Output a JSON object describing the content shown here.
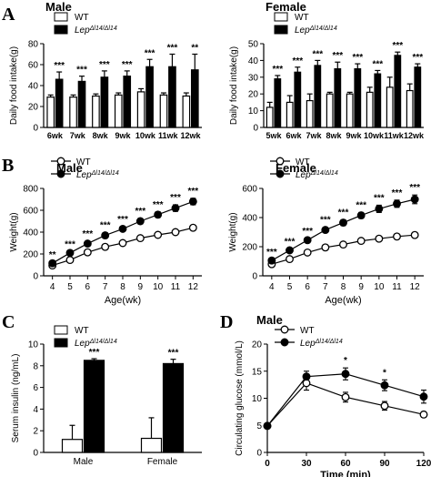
{
  "panels": {
    "A": "A",
    "B": "B",
    "C": "C",
    "D": "D"
  },
  "chart_data": [
    {
      "id": "A-male",
      "type": "bar",
      "title": "Male",
      "ylabel": "Daily food intake(g)",
      "xlabel": "",
      "ylim": [
        0,
        80
      ],
      "yticks": [
        0,
        20,
        40,
        60,
        80
      ],
      "categories": [
        "6wk",
        "7wk",
        "8wk",
        "9wk",
        "10wk",
        "11wk",
        "12wk"
      ],
      "legend": {
        "placement": "top-left",
        "entries": [
          {
            "label": "WT",
            "fill": "#ffffff"
          },
          {
            "label": "Lep",
            "sup": "Δl14/Δl14",
            "fill": "#000000"
          }
        ]
      },
      "series": [
        {
          "name": "WT",
          "fill": "#ffffff",
          "values": [
            29,
            29,
            30,
            31,
            34,
            31,
            30
          ],
          "errors": [
            2,
            2,
            2,
            2,
            3,
            2,
            3
          ]
        },
        {
          "name": "Lep Δl14/Δl14",
          "fill": "#000000",
          "values": [
            46,
            44,
            48,
            49,
            58,
            58,
            55
          ],
          "errors": [
            7,
            5,
            6,
            5,
            7,
            12,
            15
          ]
        }
      ],
      "significance": [
        "***",
        "***",
        "***",
        "***",
        "***",
        "***",
        "**"
      ]
    },
    {
      "id": "A-female",
      "type": "bar",
      "title": "Female",
      "ylabel": "Daily food intake(g)",
      "xlabel": "",
      "ylim": [
        0,
        50
      ],
      "yticks": [
        0,
        10,
        20,
        30,
        40,
        50
      ],
      "categories": [
        "5wk",
        "6wk",
        "7wk",
        "8wk",
        "9wk",
        "10wk",
        "11wk",
        "12wk"
      ],
      "legend": {
        "placement": "top-left",
        "entries": [
          {
            "label": "WT",
            "fill": "#ffffff"
          },
          {
            "label": "Lep",
            "sup": "Δl14/Δl14",
            "fill": "#000000"
          }
        ]
      },
      "series": [
        {
          "name": "WT",
          "fill": "#ffffff",
          "values": [
            12,
            15,
            16,
            20,
            20,
            21,
            24,
            22
          ],
          "errors": [
            3,
            4,
            4,
            1,
            1,
            3,
            6,
            4
          ]
        },
        {
          "name": "Lep Δl14/Δl14",
          "fill": "#000000",
          "values": [
            29,
            33,
            37,
            35,
            35,
            32,
            43,
            36
          ],
          "errors": [
            2,
            3,
            3,
            4,
            3,
            2,
            2,
            2
          ]
        }
      ],
      "significance": [
        "***",
        "***",
        "***",
        "***",
        "***",
        "***",
        "***",
        "***"
      ]
    },
    {
      "id": "B-male",
      "type": "line",
      "title": "Male",
      "ylabel": "Weight(g)",
      "xlabel": "Age(wk)",
      "xlim": [
        3.5,
        12.5
      ],
      "ylim": [
        0,
        800
      ],
      "yticks": [
        0,
        200,
        400,
        600,
        800
      ],
      "xticks": [
        4,
        5,
        6,
        7,
        8,
        9,
        10,
        11,
        12
      ],
      "legend": {
        "placement": "top-left",
        "entries": [
          {
            "label": "WT",
            "marker": "open"
          },
          {
            "label": "Lep",
            "sup": "Δl14/Δl14",
            "marker": "filled"
          }
        ]
      },
      "series": [
        {
          "name": "WT",
          "marker": "open",
          "x": [
            4,
            5,
            6,
            7,
            8,
            9,
            10,
            11,
            12
          ],
          "values": [
            95,
            145,
            215,
            265,
            300,
            345,
            375,
            400,
            440
          ],
          "errors": [
            8,
            8,
            8,
            8,
            8,
            8,
            8,
            8,
            10
          ]
        },
        {
          "name": "Lep Δl14/Δl14",
          "marker": "filled",
          "x": [
            4,
            5,
            6,
            7,
            8,
            9,
            10,
            11,
            12
          ],
          "values": [
            115,
            210,
            295,
            370,
            430,
            500,
            560,
            620,
            680
          ],
          "errors": [
            10,
            12,
            20,
            25,
            20,
            25,
            25,
            30,
            30
          ]
        }
      ],
      "significance": [
        "**",
        "***",
        "***",
        "***",
        "***",
        "***",
        "***",
        "***",
        "***"
      ]
    },
    {
      "id": "B-female",
      "type": "line",
      "title": "Female",
      "ylabel": "Weight(g)",
      "xlabel": "Age(wk)",
      "xlim": [
        3.5,
        12.5
      ],
      "ylim": [
        0,
        600
      ],
      "yticks": [
        0,
        200,
        400,
        600
      ],
      "xticks": [
        4,
        5,
        6,
        7,
        8,
        9,
        10,
        11,
        12
      ],
      "legend": {
        "placement": "top-left",
        "entries": [
          {
            "label": "WT",
            "marker": "open"
          },
          {
            "label": "Lep",
            "sup": "Δl14/Δl14",
            "marker": "filled"
          }
        ]
      },
      "series": [
        {
          "name": "WT",
          "marker": "open",
          "x": [
            4,
            5,
            6,
            7,
            8,
            9,
            10,
            11,
            12
          ],
          "values": [
            80,
            115,
            160,
            195,
            215,
            240,
            255,
            270,
            280
          ],
          "errors": [
            6,
            6,
            6,
            6,
            6,
            6,
            6,
            6,
            8
          ]
        },
        {
          "name": "Lep Δl14/Δl14",
          "marker": "filled",
          "x": [
            4,
            5,
            6,
            7,
            8,
            9,
            10,
            11,
            12
          ],
          "values": [
            105,
            175,
            245,
            315,
            365,
            415,
            460,
            495,
            525
          ],
          "errors": [
            8,
            10,
            12,
            18,
            20,
            20,
            25,
            25,
            30
          ]
        }
      ],
      "significance": [
        "***",
        "***",
        "***",
        "***",
        "***",
        "***",
        "***",
        "***",
        "***"
      ]
    },
    {
      "id": "C",
      "type": "bar",
      "title": "",
      "ylabel": "Serum insulin (ng/mL)",
      "xlabel": "",
      "ylim": [
        0,
        10
      ],
      "yticks": [
        0,
        2,
        4,
        6,
        8,
        10
      ],
      "categories": [
        "Male",
        "Female"
      ],
      "legend": {
        "placement": "top-left",
        "entries": [
          {
            "label": "WT",
            "fill": "#ffffff"
          },
          {
            "label": "Lep",
            "sup": "Δl14/Δl14",
            "fill": "#000000"
          }
        ]
      },
      "series": [
        {
          "name": "WT",
          "fill": "#ffffff",
          "values": [
            1.2,
            1.3
          ],
          "errors": [
            1.3,
            1.9
          ]
        },
        {
          "name": "Lep Δl14/Δl14",
          "fill": "#000000",
          "values": [
            8.5,
            8.2
          ],
          "errors": [
            0.15,
            0.4
          ]
        }
      ],
      "significance": [
        "***",
        "***"
      ]
    },
    {
      "id": "D",
      "type": "line",
      "title": "Male",
      "ylabel": "Circulating glucose (mmol/L)",
      "xlabel": "Time (min)",
      "xlim": [
        0,
        120
      ],
      "ylim": [
        0,
        20
      ],
      "yticks": [
        0,
        5,
        10,
        15,
        20
      ],
      "xticks": [
        0,
        30,
        60,
        90,
        120
      ],
      "legend": {
        "placement": "top-left",
        "entries": [
          {
            "label": "WT",
            "marker": "open"
          },
          {
            "label": "Lep",
            "sup": "Δl14/Δl14",
            "marker": "filled"
          }
        ]
      },
      "series": [
        {
          "name": "WT",
          "marker": "open",
          "x": [
            0,
            30,
            60,
            90,
            120
          ],
          "values": [
            4.9,
            12.8,
            10.2,
            8.6,
            7.0
          ],
          "errors": [
            0.3,
            1.3,
            0.9,
            0.8,
            0.5
          ]
        },
        {
          "name": "Lep Δl14/Δl14",
          "marker": "filled",
          "x": [
            0,
            30,
            60,
            90,
            120
          ],
          "values": [
            4.9,
            14.0,
            14.5,
            12.4,
            10.3
          ],
          "errors": [
            0.3,
            1.0,
            1.1,
            1.0,
            1.2
          ]
        }
      ],
      "significance": [
        "",
        "",
        "*",
        "*",
        ""
      ]
    }
  ]
}
